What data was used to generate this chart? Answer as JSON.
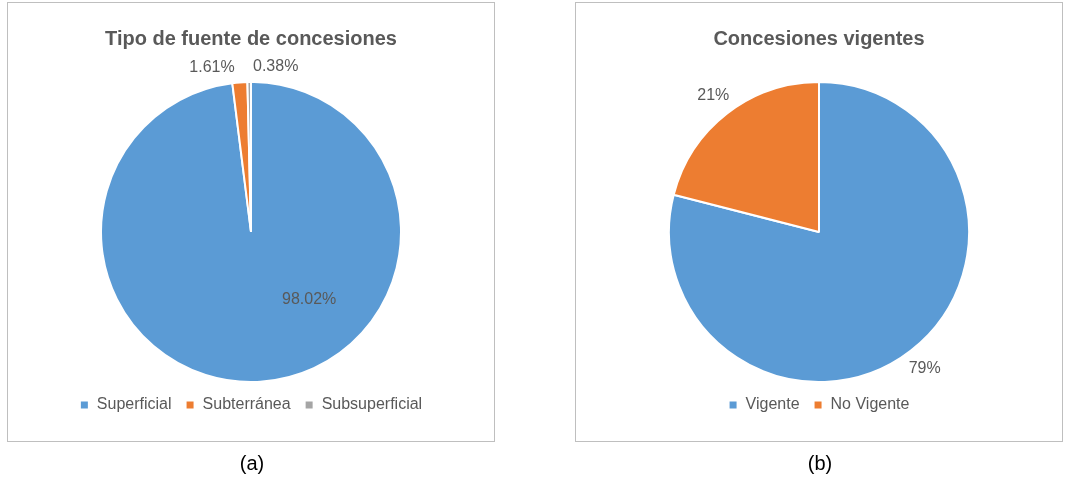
{
  "chart_data": [
    {
      "type": "pie",
      "title": "Tipo de fuente de concesiones",
      "categories": [
        "Superficial",
        "Subterránea",
        "Subsuperficial"
      ],
      "values": [
        98.02,
        1.61,
        0.38
      ],
      "colors": [
        "#5b9bd5",
        "#ed7d31",
        "#a5a5a5"
      ],
      "value_labels": [
        "98.02%",
        "1.61%",
        "0.38%"
      ],
      "legend": "bottom",
      "annotations": [
        "(a)"
      ]
    },
    {
      "type": "pie",
      "title": "Concesiones vigentes",
      "categories": [
        "Vigente",
        "No Vigente"
      ],
      "values": [
        79,
        21
      ],
      "colors": [
        "#5b9bd5",
        "#ed7d31"
      ],
      "value_labels": [
        "79%",
        "21%"
      ],
      "legend": "bottom",
      "annotations": [
        "(b)"
      ]
    }
  ]
}
